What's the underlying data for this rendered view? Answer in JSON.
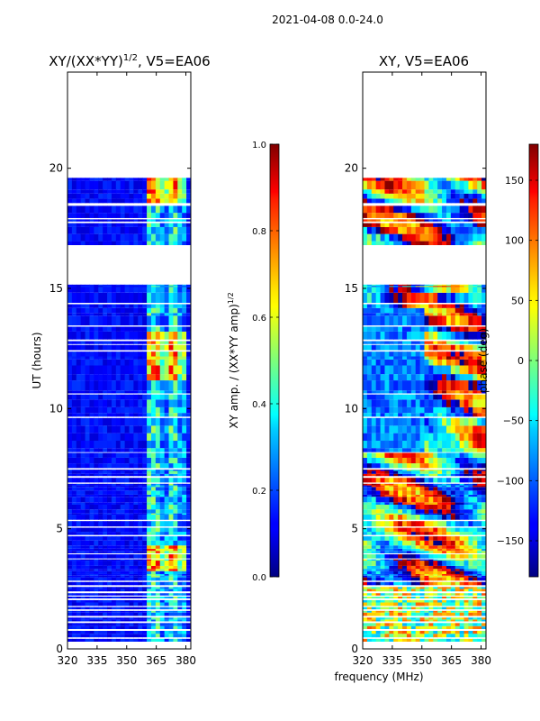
{
  "suptitle": "2021-04-08 0.0-24.0",
  "chart_data": [
    {
      "type": "heatmap",
      "title_main": "XY/(XX*YY)",
      "title_exp": "1/2",
      "title_tail": ", V5=EA06",
      "xlabel": "",
      "ylabel": "UT (hours)",
      "xlim": [
        320,
        382.5
      ],
      "ylim": [
        0,
        24
      ],
      "xticks": [
        320,
        335,
        350,
        365,
        380
      ],
      "yticks": [
        0,
        5,
        10,
        15,
        20
      ],
      "data_rows_ut": [
        0.3,
        19.6
      ],
      "colorbar": {
        "label_main": "XY amp. / (XX*YY amp)",
        "label_exp": "1/2",
        "range": [
          0.0,
          1.0
        ],
        "ticks": [
          "0.0",
          "0.2",
          "0.4",
          "0.6",
          "0.8",
          "1.0"
        ],
        "tick_values": [
          0.0,
          0.2,
          0.4,
          0.6,
          0.8,
          1.0
        ]
      }
    },
    {
      "type": "heatmap",
      "title": "XY, V5=EA06",
      "xlabel": "frequency (MHz)",
      "ylabel": "",
      "xlim": [
        320,
        382.5
      ],
      "ylim": [
        0,
        24
      ],
      "xticks": [
        320,
        335,
        350,
        365,
        380
      ],
      "yticks": [
        0,
        5,
        10,
        15,
        20
      ],
      "data_rows_ut": [
        0.3,
        19.6
      ],
      "colorbar": {
        "label": "phase (deg)",
        "range": [
          -180,
          180
        ],
        "ticks": [
          "−150",
          "−100",
          "−50",
          "0",
          "50",
          "100",
          "150"
        ],
        "tick_values": [
          -150,
          -100,
          -50,
          0,
          50,
          100,
          150
        ]
      }
    }
  ],
  "colormap": "jet"
}
